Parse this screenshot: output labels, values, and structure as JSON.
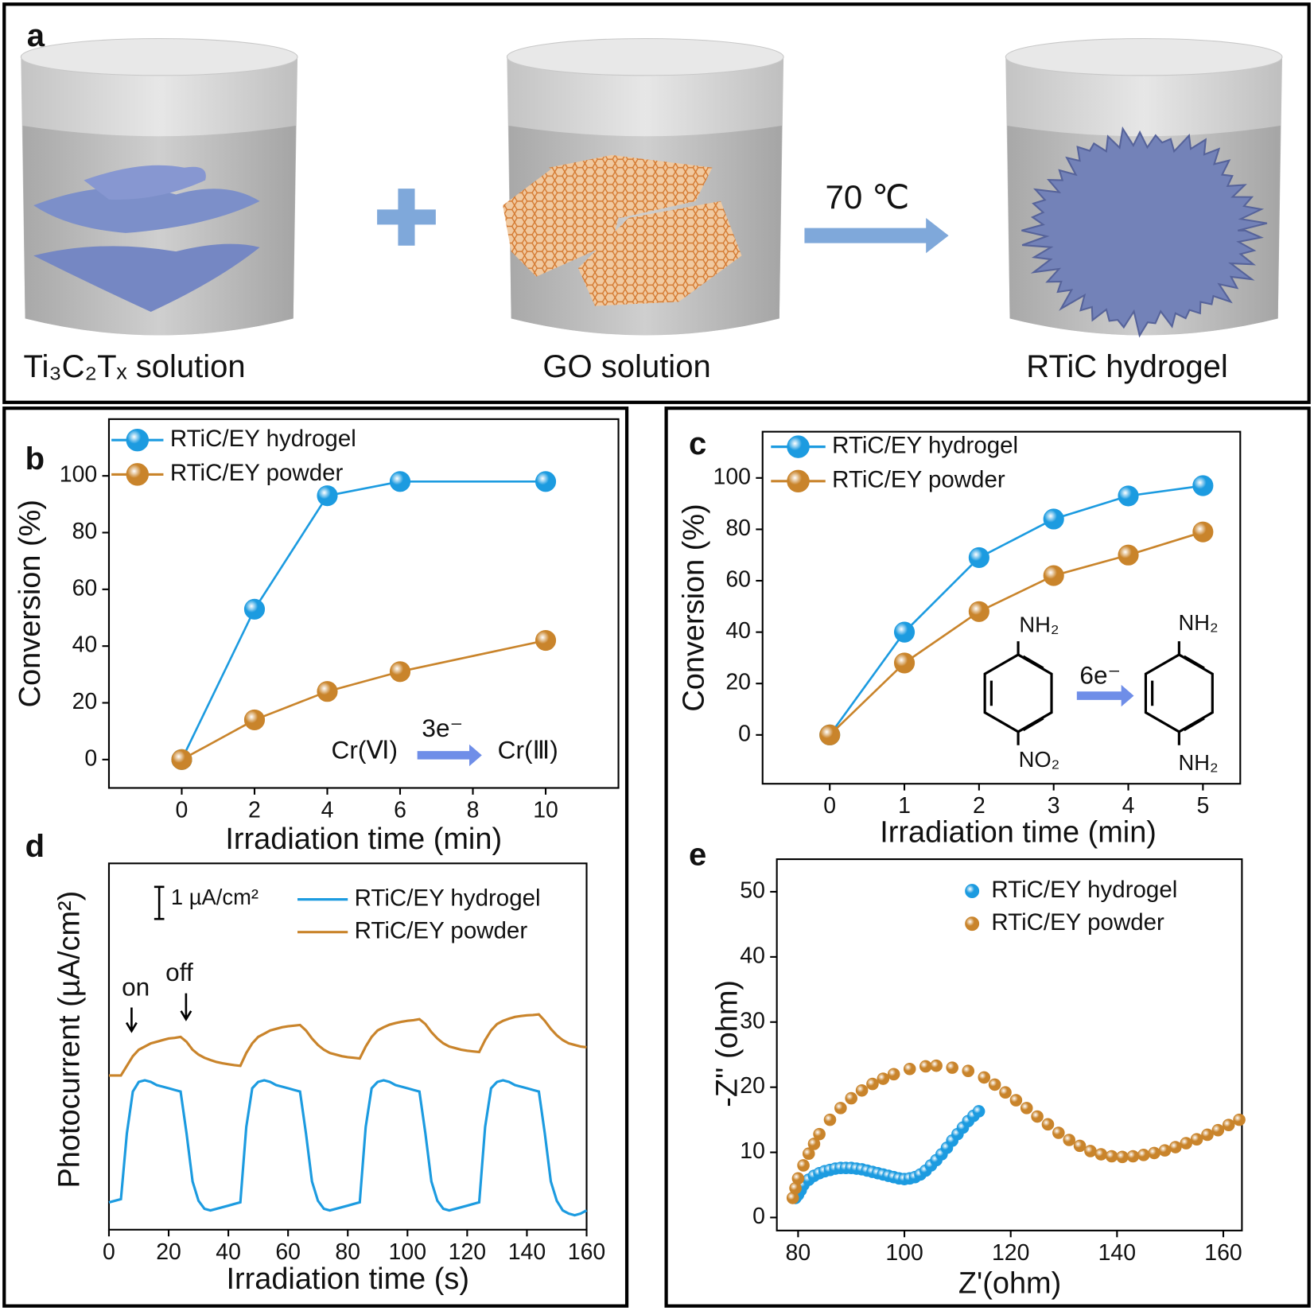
{
  "diagram": {
    "panel": "a",
    "beakers": [
      {
        "label": "Ti₃C₂Tₓ solution"
      },
      {
        "label": "GO solution"
      },
      {
        "label": "RTiC hydrogel"
      }
    ],
    "arrow_label": "70 ℃"
  },
  "chart_data": [
    {
      "type": "line",
      "panel": "b",
      "marker": "sphere",
      "x_label": "Irradiation time (min)",
      "y_label": "Conversion (%)",
      "x": [
        0,
        2,
        4,
        6,
        10
      ],
      "series": [
        {
          "name": "RTiC/EY hydrogel",
          "color": "#1c9be0",
          "values": [
            0,
            53,
            93,
            98,
            98
          ]
        },
        {
          "name": "RTiC/EY powder",
          "color": "#c9842b",
          "values": [
            0,
            14,
            24,
            31,
            42
          ]
        }
      ],
      "xlim": [
        -2,
        12
      ],
      "ylim": [
        -10,
        120
      ],
      "xticks": [
        0,
        2,
        4,
        6,
        8,
        10
      ],
      "yticks": [
        0,
        20,
        40,
        60,
        80,
        100
      ],
      "annotations": [
        "Cr(Ⅵ)",
        "3e⁻",
        "Cr(Ⅲ)"
      ]
    },
    {
      "type": "line",
      "panel": "c",
      "marker": "sphere",
      "x_label": "Irradiation time (min)",
      "y_label": "Conversion (%)",
      "x": [
        0,
        1,
        2,
        3,
        4,
        5
      ],
      "series": [
        {
          "name": "RTiC/EY hydrogel",
          "color": "#1c9be0",
          "values": [
            0,
            40,
            69,
            84,
            93,
            97
          ]
        },
        {
          "name": "RTiC/EY powder",
          "color": "#c9842b",
          "values": [
            0,
            28,
            48,
            62,
            70,
            79
          ]
        }
      ],
      "xlim": [
        -0.9,
        5.5
      ],
      "ylim": [
        -19,
        118
      ],
      "xticks": [
        0,
        1,
        2,
        3,
        4,
        5
      ],
      "yticks": [
        0,
        20,
        40,
        60,
        80,
        100
      ],
      "annotations": [
        "NH₂",
        "NO₂",
        "6e⁻",
        "NH₂",
        "NH₂"
      ]
    },
    {
      "type": "line",
      "panel": "d",
      "x_label": "Irradiation time (s)",
      "y_label": "Photocurrent (µA/cm²)",
      "x": [
        0,
        2,
        4,
        6,
        8,
        10,
        12,
        14,
        16,
        18,
        20,
        22,
        24,
        26,
        28,
        30,
        32,
        34,
        36,
        38,
        40,
        42,
        44,
        46,
        48,
        50,
        52,
        54,
        56,
        58,
        60,
        62,
        64,
        66,
        68,
        70,
        72,
        74,
        76,
        78,
        80,
        82,
        84,
        86,
        88,
        90,
        92,
        94,
        96,
        98,
        100,
        102,
        104,
        106,
        108,
        110,
        112,
        114,
        116,
        118,
        120,
        122,
        124,
        126,
        128,
        130,
        132,
        134,
        136,
        138,
        140,
        142,
        144,
        146,
        148,
        150,
        152,
        154,
        156,
        158,
        160
      ],
      "series": [
        {
          "name": "RTiC/EY hydrogel",
          "color": "#1c9be0",
          "values": [
            0.85,
            0.9,
            0.95,
            3.0,
            4.3,
            4.6,
            4.65,
            4.6,
            4.5,
            4.45,
            4.4,
            4.35,
            4.3,
            3.0,
            1.5,
            0.9,
            0.65,
            0.6,
            0.65,
            0.7,
            0.75,
            0.8,
            0.85,
            3.2,
            4.4,
            4.6,
            4.65,
            4.6,
            4.5,
            4.45,
            4.4,
            4.35,
            4.3,
            3.0,
            1.5,
            0.9,
            0.65,
            0.6,
            0.65,
            0.7,
            0.75,
            0.8,
            0.85,
            3.2,
            4.4,
            4.6,
            4.65,
            4.6,
            4.5,
            4.45,
            4.4,
            4.35,
            4.3,
            3.0,
            1.5,
            0.9,
            0.65,
            0.6,
            0.65,
            0.7,
            0.75,
            0.8,
            0.85,
            3.2,
            4.4,
            4.6,
            4.65,
            4.6,
            4.5,
            4.45,
            4.4,
            4.35,
            4.3,
            3.0,
            1.5,
            0.9,
            0.6,
            0.5,
            0.45,
            0.5,
            0.6
          ]
        },
        {
          "name": "RTiC/EY powder",
          "color": "#c9842b",
          "values": [
            4.8,
            4.8,
            4.8,
            5.1,
            5.4,
            5.6,
            5.7,
            5.8,
            5.85,
            5.9,
            5.95,
            5.97,
            6.0,
            5.85,
            5.6,
            5.45,
            5.35,
            5.28,
            5.22,
            5.18,
            5.15,
            5.12,
            5.1,
            5.5,
            5.8,
            6.0,
            6.1,
            6.2,
            6.25,
            6.3,
            6.33,
            6.35,
            6.37,
            6.2,
            5.95,
            5.75,
            5.6,
            5.5,
            5.45,
            5.4,
            5.37,
            5.35,
            5.33,
            5.7,
            6.0,
            6.2,
            6.3,
            6.38,
            6.43,
            6.47,
            6.5,
            6.52,
            6.55,
            6.4,
            6.15,
            5.95,
            5.8,
            5.7,
            5.65,
            5.6,
            5.57,
            5.55,
            5.53,
            5.9,
            6.2,
            6.4,
            6.5,
            6.57,
            6.62,
            6.65,
            6.67,
            6.68,
            6.7,
            6.5,
            6.25,
            6.05,
            5.9,
            5.8,
            5.75,
            5.7,
            5.68
          ]
        }
      ],
      "xlim": [
        0,
        160
      ],
      "ylim": [
        0,
        11.4
      ],
      "xticks": [
        0,
        20,
        40,
        60,
        80,
        100,
        120,
        140,
        160
      ],
      "scale_bar": {
        "value": 1,
        "label": "1 µA/cm²"
      },
      "annotations": [
        "on",
        "off"
      ]
    },
    {
      "type": "scatter",
      "panel": "e",
      "marker": "sphere",
      "x_label": "Z'(ohm)",
      "y_label": "-Z'' (ohm)",
      "series": [
        {
          "name": "RTiC/EY hydrogel",
          "color": "#1c9be0",
          "x": [
            79.5,
            80,
            80.5,
            81,
            82,
            83,
            84,
            85,
            86,
            87,
            88,
            89,
            90,
            91,
            92,
            93,
            94,
            95,
            96,
            97,
            98,
            99,
            100,
            101,
            102,
            103,
            104,
            105,
            106,
            107,
            108,
            109,
            110,
            111,
            112,
            113,
            114
          ],
          "values": [
            3,
            3.5,
            4.2,
            5,
            5.8,
            6.4,
            6.8,
            7.1,
            7.3,
            7.5,
            7.6,
            7.6,
            7.6,
            7.5,
            7.4,
            7.2,
            7,
            6.8,
            6.6,
            6.4,
            6.2,
            6,
            5.9,
            6,
            6.2,
            6.6,
            7.2,
            8,
            8.8,
            9.7,
            10.7,
            11.8,
            12.8,
            13.8,
            14.8,
            15.6,
            16.3
          ]
        },
        {
          "name": "RTiC/EY powder",
          "color": "#c9842b",
          "x": [
            79,
            79.5,
            80,
            81,
            82,
            83,
            84,
            86,
            88,
            90,
            92,
            94,
            96,
            98,
            101,
            104,
            106,
            109,
            112,
            115,
            117,
            119,
            121,
            123,
            125,
            127,
            129,
            131,
            133,
            135,
            137,
            139,
            141,
            143,
            145,
            147,
            149,
            151,
            153,
            155,
            157,
            159,
            161,
            163
          ],
          "values": [
            3,
            4.5,
            6,
            8,
            9.8,
            11.3,
            12.8,
            15,
            16.8,
            18.3,
            19.5,
            20.5,
            21.3,
            22,
            22.8,
            23.2,
            23.3,
            23,
            22.5,
            21.5,
            20.4,
            19.2,
            18,
            16.8,
            15.5,
            14.3,
            13,
            11.9,
            11,
            10.2,
            9.7,
            9.4,
            9.3,
            9.4,
            9.6,
            9.9,
            10.3,
            10.8,
            11.4,
            12,
            12.7,
            13.4,
            14.2,
            15
          ]
        }
      ],
      "xlim": [
        76,
        163.5
      ],
      "ylim": [
        -2,
        55
      ],
      "xticks": [
        80,
        100,
        120,
        140,
        160
      ],
      "yticks": [
        0,
        10,
        20,
        30,
        40,
        50
      ]
    }
  ]
}
